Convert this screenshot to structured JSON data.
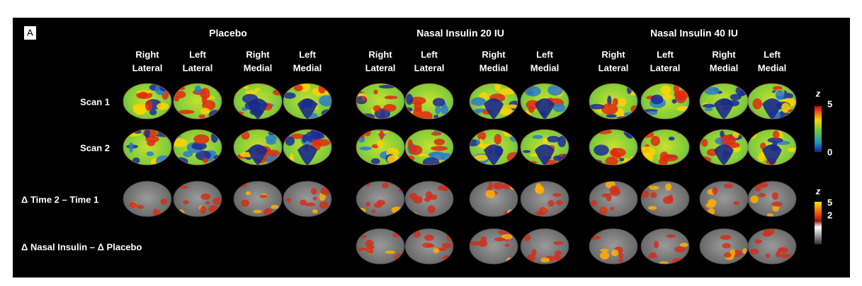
{
  "panel_label": "A",
  "groups": [
    {
      "title": "Placebo",
      "columns": [
        [
          "Right",
          "Lateral"
        ],
        [
          "Left",
          "Lateral"
        ],
        [
          "Right",
          "Medial"
        ],
        [
          "Left",
          "Medial"
        ]
      ]
    },
    {
      "title": "Nasal Insulin 20 IU",
      "columns": [
        [
          "Right",
          "Lateral"
        ],
        [
          "Left",
          "Lateral"
        ],
        [
          "Right",
          "Medial"
        ],
        [
          "Left",
          "Medial"
        ]
      ]
    },
    {
      "title": "Nasal Insulin 40 IU",
      "columns": [
        [
          "Right",
          "Lateral"
        ],
        [
          "Left",
          "Lateral"
        ],
        [
          "Right",
          "Medial"
        ],
        [
          "Left",
          "Medial"
        ]
      ]
    }
  ],
  "rows": [
    "Scan 1",
    "Scan 2",
    "Δ Time 2 – Time 1",
    "Δ Nasal Insulin – Δ Placebo"
  ],
  "colorbars": [
    {
      "title": "z",
      "labels": [
        5,
        0
      ]
    },
    {
      "title": "z",
      "labels": [
        5,
        2
      ]
    }
  ]
}
